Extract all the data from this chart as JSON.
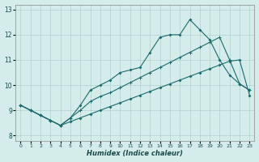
{
  "xlabel": "Humidex (Indice chaleur)",
  "background_color": "#d4edeb",
  "grid_color": "#b0cfcc",
  "line_color": "#1a6b6b",
  "xlim": [
    -0.5,
    23.5
  ],
  "ylim": [
    7.8,
    13.2
  ],
  "xticks": [
    0,
    1,
    2,
    3,
    4,
    5,
    6,
    7,
    8,
    9,
    10,
    11,
    12,
    13,
    14,
    15,
    16,
    17,
    18,
    19,
    20,
    21,
    22,
    23
  ],
  "yticks": [
    8,
    9,
    10,
    11,
    12,
    13
  ],
  "line1_x": [
    0,
    1,
    2,
    3,
    4,
    5,
    6,
    7,
    8,
    9,
    10,
    11,
    12,
    13,
    14,
    15,
    16,
    17,
    18,
    19,
    20,
    21,
    22,
    23
  ],
  "line1_y": [
    9.2,
    9.0,
    8.8,
    8.6,
    8.4,
    8.7,
    9.2,
    9.8,
    10.0,
    10.2,
    10.5,
    10.6,
    10.7,
    11.3,
    11.9,
    12.0,
    12.0,
    12.6,
    12.2,
    11.8,
    11.0,
    10.4,
    10.05,
    9.8
  ],
  "line2_x": [
    0,
    1,
    2,
    3,
    4,
    5,
    6,
    7,
    8,
    9,
    10,
    11,
    12,
    13,
    14,
    15,
    16,
    17,
    18,
    19,
    20,
    21,
    22,
    23
  ],
  "line2_y": [
    9.2,
    9.0,
    8.8,
    8.6,
    8.4,
    8.7,
    9.0,
    9.35,
    9.55,
    9.7,
    9.9,
    10.1,
    10.3,
    10.5,
    10.7,
    10.9,
    11.1,
    11.3,
    11.5,
    11.7,
    11.9,
    11.0,
    10.05,
    9.8
  ],
  "line3_x": [
    0,
    1,
    2,
    3,
    4,
    5,
    6,
    7,
    8,
    9,
    10,
    11,
    12,
    13,
    14,
    15,
    16,
    17,
    18,
    19,
    20,
    21,
    22,
    23
  ],
  "line3_y": [
    9.2,
    9.0,
    8.8,
    8.6,
    8.4,
    8.55,
    8.7,
    8.85,
    9.0,
    9.15,
    9.3,
    9.45,
    9.6,
    9.75,
    9.9,
    10.05,
    10.2,
    10.35,
    10.5,
    10.65,
    10.8,
    10.95,
    11.0,
    9.6
  ]
}
